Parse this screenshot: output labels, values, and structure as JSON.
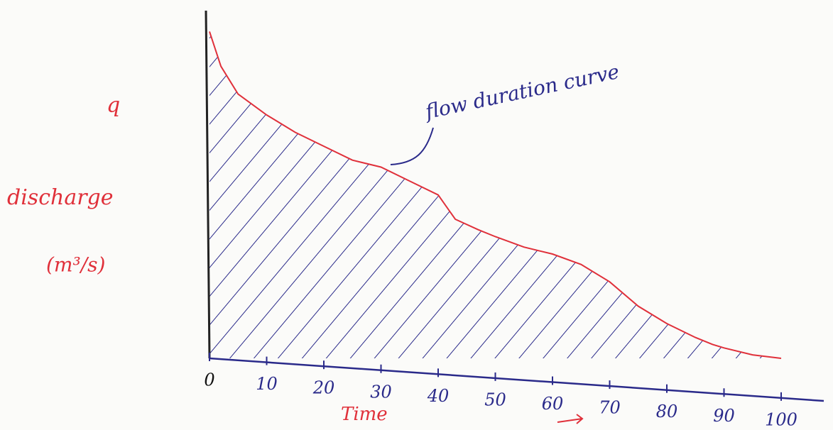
{
  "chart_data": {
    "type": "area",
    "y_symbol": "q",
    "y_label": "discharge",
    "y_unit": "(m³/s)",
    "x_label": "Time",
    "annotation": "flow duration curve",
    "x": [
      0,
      2,
      5,
      10,
      15,
      20,
      25,
      30,
      35,
      40,
      43,
      47,
      50,
      55,
      60,
      65,
      70,
      75,
      80,
      85,
      88,
      90,
      95,
      100
    ],
    "series": [
      {
        "color": "#e0303a",
        "hatch_color": "#2a2a8a",
        "values": [
          94,
          84,
          76,
          70,
          65,
          61,
          57,
          55,
          51,
          47,
          40,
          37,
          35,
          32,
          30,
          27,
          22,
          15,
          10,
          6,
          4,
          3,
          1,
          0
        ]
      }
    ],
    "xlim": [
      0,
      100
    ],
    "xticks": [
      0,
      10,
      20,
      30,
      40,
      50,
      60,
      70,
      80,
      90,
      100
    ],
    "ylim": [
      0,
      100
    ]
  }
}
